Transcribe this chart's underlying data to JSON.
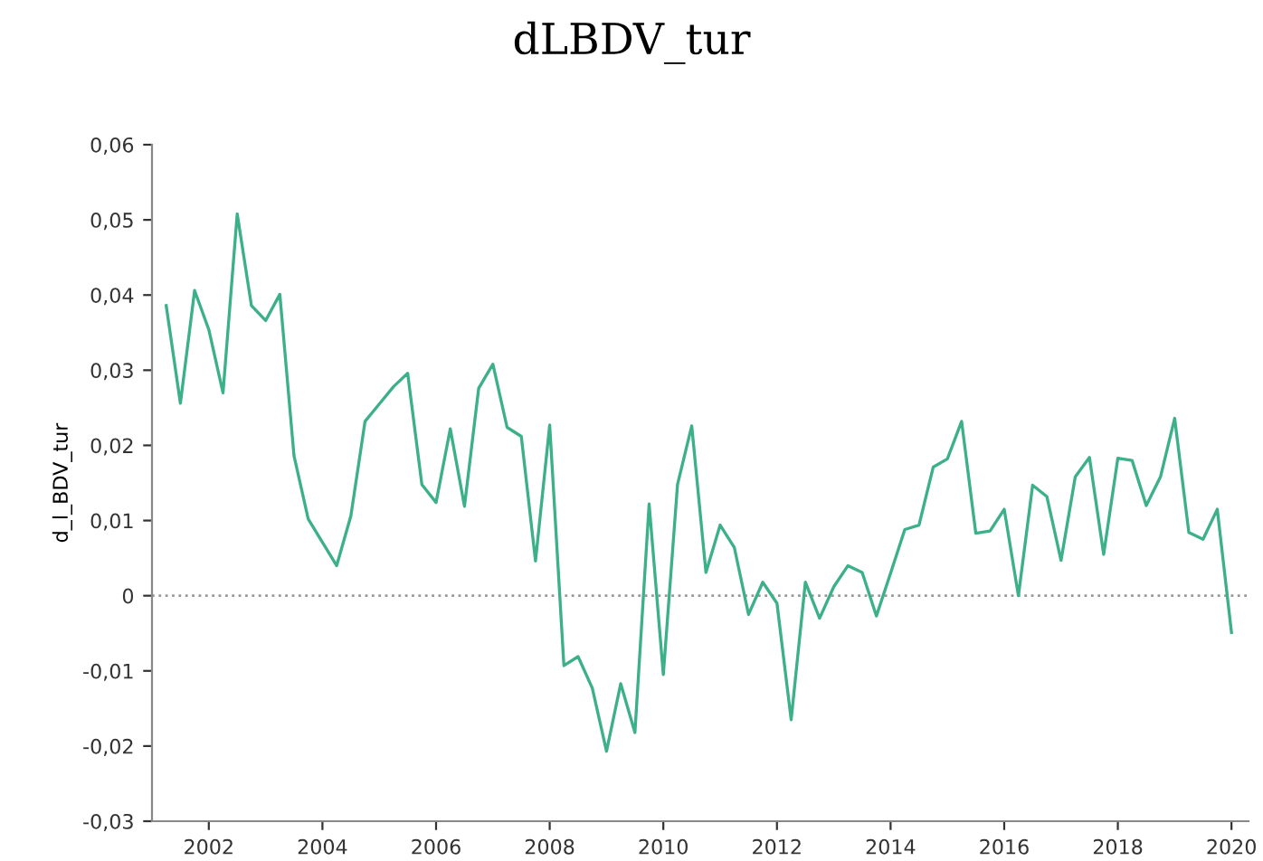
{
  "chart_data": {
    "type": "line",
    "title": "dLBDV_tur",
    "ylabel": "d_l_BDV_tur",
    "x": [
      2001.25,
      2001.5,
      2001.75,
      2002.0,
      2002.25,
      2002.5,
      2002.75,
      2003.0,
      2003.25,
      2003.5,
      2003.75,
      2004.0,
      2004.25,
      2004.5,
      2004.75,
      2005.0,
      2005.25,
      2005.5,
      2005.75,
      2006.0,
      2006.25,
      2006.5,
      2006.75,
      2007.0,
      2007.25,
      2007.5,
      2007.75,
      2008.0,
      2008.25,
      2008.5,
      2008.75,
      2009.0,
      2009.25,
      2009.5,
      2009.75,
      2010.0,
      2010.25,
      2010.5,
      2010.75,
      2011.0,
      2011.25,
      2011.5,
      2011.75,
      2012.0,
      2012.25,
      2012.5,
      2012.75,
      2013.0,
      2013.25,
      2013.5,
      2013.75,
      2014.0,
      2014.25,
      2014.5,
      2014.75,
      2015.0,
      2015.25,
      2015.5,
      2015.75,
      2016.0,
      2016.25,
      2016.5,
      2016.75,
      2017.0,
      2017.25,
      2017.5,
      2017.75,
      2018.0,
      2018.25,
      2018.5,
      2018.75,
      2019.0,
      2019.25,
      2019.5,
      2019.75,
      2020.0
    ],
    "series": [
      {
        "color": "#3cb08a",
        "values": [
          0.0386,
          0.0256,
          0.0406,
          0.0354,
          0.027,
          0.0508,
          0.0386,
          0.0366,
          0.0401,
          0.0186,
          0.0102,
          0.0071,
          0.004,
          0.0106,
          0.0232,
          0.0255,
          0.0278,
          0.0296,
          0.0148,
          0.0124,
          0.0222,
          0.0119,
          0.0276,
          0.0308,
          0.0224,
          0.0212,
          0.0046,
          0.0227,
          -0.0093,
          -0.0081,
          -0.0123,
          -0.0207,
          -0.0117,
          -0.0182,
          0.0122,
          -0.0105,
          0.0148,
          0.0226,
          0.0031,
          0.0094,
          0.0064,
          -0.0025,
          0.0018,
          -0.001,
          -0.0165,
          0.0018,
          -0.003,
          0.0012,
          0.004,
          0.0031,
          -0.0027,
          0.003,
          0.0088,
          0.0094,
          0.0171,
          0.0182,
          0.0232,
          0.0083,
          0.0086,
          0.0115,
          0.0,
          0.0147,
          0.0132,
          0.0047,
          0.0158,
          0.0184,
          0.0055,
          0.0183,
          0.018,
          0.012,
          0.0158,
          0.0236,
          0.0084,
          0.0075,
          0.0115,
          -0.0049
        ]
      }
    ],
    "xlim": [
      2001.0,
      2020.3
    ],
    "xticks": [
      2002,
      2004,
      2006,
      2008,
      2010,
      2012,
      2014,
      2016,
      2018,
      2020
    ],
    "ylim": [
      -0.03,
      0.06
    ],
    "yticks": [
      {
        "value": -0.03,
        "label": "-0,03"
      },
      {
        "value": -0.02,
        "label": "-0,02"
      },
      {
        "value": -0.01,
        "label": "-0,01"
      },
      {
        "value": 0,
        "label": "0"
      },
      {
        "value": 0.01,
        "label": "0,01"
      },
      {
        "value": 0.02,
        "label": "0,02"
      },
      {
        "value": 0.03,
        "label": "0,03"
      },
      {
        "value": 0.04,
        "label": "0,04"
      },
      {
        "value": 0.05,
        "label": "0,05"
      },
      {
        "value": 0.06,
        "label": "0,06"
      }
    ],
    "ref_lines": [
      {
        "axis": "y",
        "value": 0,
        "color": "#999999",
        "line_style": "dotted"
      }
    ],
    "grid": false,
    "legend": false,
    "marker": "none",
    "line_style": "solid"
  }
}
